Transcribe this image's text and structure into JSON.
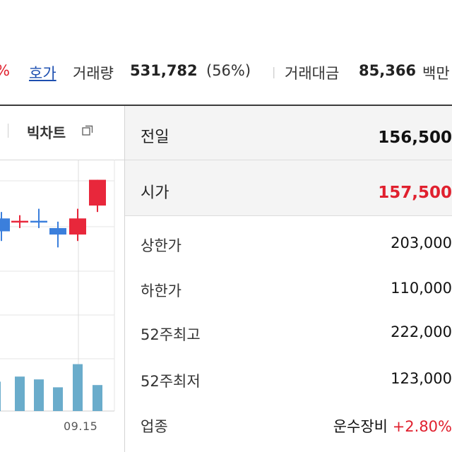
{
  "summary": {
    "change_pct_tail": "%",
    "hoga_link": "호가",
    "volume_label": "거래량",
    "volume_value": "531,782",
    "volume_ratio": "(56%)",
    "separator": "|",
    "amount_label": "거래대금",
    "amount_value": "85,366",
    "amount_unit": "백만"
  },
  "chart_panel": {
    "bigchart_label": "빅차트",
    "x_tick": "09.15",
    "colors": {
      "up": "#e8273b",
      "down": "#3b7fdc",
      "volume": "#6aaccb",
      "grid": "#e6e6e6"
    }
  },
  "chart_data": {
    "type": "candlestick",
    "x": [
      "",
      "",
      "",
      "",
      "",
      "09.15"
    ],
    "ohlc": [
      [
        159000,
        161000,
        152000,
        155000
      ],
      [
        158000,
        160000,
        156000,
        158000
      ],
      [
        158000,
        162000,
        156000,
        158000
      ],
      [
        156000,
        158000,
        150000,
        154000
      ],
      [
        154000,
        162000,
        152000,
        159000
      ],
      [
        163000,
        171000,
        161000,
        171000
      ]
    ],
    "volume": [
      5.2,
      6.1,
      5.6,
      4.2,
      8.3,
      4.6
    ]
  },
  "info_table": {
    "rows": [
      {
        "label": "전일",
        "value": "156,500"
      },
      {
        "label": "시가",
        "value": "157,500"
      },
      {
        "label": "상한가",
        "value": "203,000"
      },
      {
        "label": "하한가",
        "value": "110,000"
      },
      {
        "label": "52주최고",
        "value": "222,000"
      },
      {
        "label": "52주최저",
        "value": "123,000"
      },
      {
        "label": "업종",
        "value": "운수장비",
        "rate": "+2.80%"
      }
    ]
  }
}
